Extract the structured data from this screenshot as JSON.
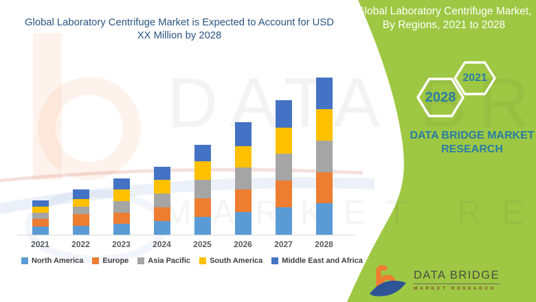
{
  "chart_data": {
    "type": "bar",
    "stacked": true,
    "title": "Global Laboratory Centrifuge Market is Expected to Account for USD XX Million by 2028",
    "categories": [
      "2021",
      "2022",
      "2023",
      "2024",
      "2025",
      "2026",
      "2027",
      "2028"
    ],
    "series": [
      {
        "name": "North America",
        "color": "#5B9BD5",
        "values": [
          12,
          13,
          16,
          20,
          26,
          33,
          40,
          46
        ]
      },
      {
        "name": "Europe",
        "color": "#ED7D31",
        "values": [
          11,
          17,
          16,
          20,
          27,
          33,
          39,
          45
        ]
      },
      {
        "name": "Asia Pacific",
        "color": "#A5A5A5",
        "values": [
          9,
          11,
          17,
          20,
          27,
          32,
          39,
          46
        ]
      },
      {
        "name": "South America",
        "color": "#FFC000",
        "values": [
          9,
          11,
          17,
          20,
          27,
          31,
          38,
          46
        ]
      },
      {
        "name": "Middle East and Africa",
        "color": "#4472C4",
        "values": [
          9,
          14,
          16,
          19,
          24,
          35,
          40,
          46
        ]
      }
    ],
    "xlabel": "",
    "ylabel": "",
    "y_axis_visible": false,
    "grid": false,
    "legend_position": "bottom",
    "units": "relative estimate (actual values shown as USD XX Million)"
  },
  "panel": {
    "title": "Global Laboratory Centrifuge Market, By Regions, 2021 to 2028",
    "hexagon_small_label": "2021",
    "hexagon_large_label": "2028",
    "brand": "DATA BRIDGE MARKET RESEARCH"
  },
  "logo": {
    "name": "DATA BRIDGE",
    "subtitle": "MARKET RESEARCH"
  },
  "watermark": {
    "line1": "DATA BRIDGE",
    "line2": "MARKET RESEARCH"
  },
  "colors": {
    "panel_green": "#9EC843",
    "title_blue": "#2A5480",
    "teal_text": "#2B7CA5",
    "axis_label": "#595959",
    "baseline": "#D9D9D9",
    "logo_orange": "#ED7D31",
    "logo_blue": "#2E5496"
  }
}
